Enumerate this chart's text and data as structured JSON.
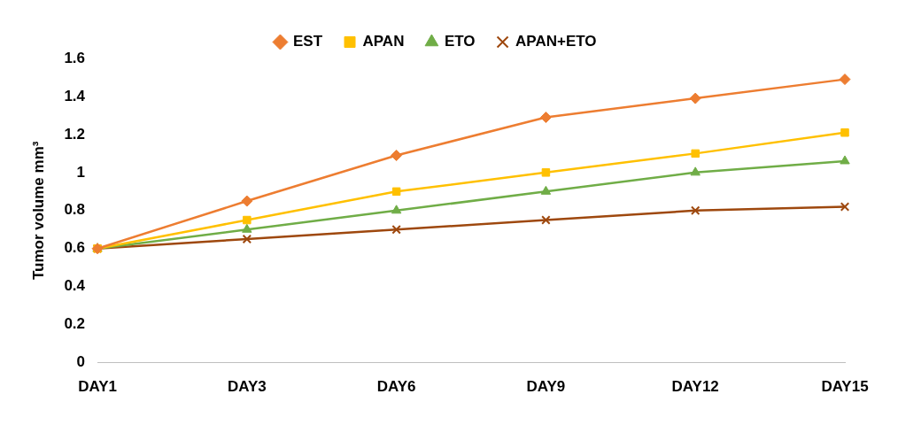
{
  "chart_data": {
    "type": "line",
    "ylabel": "Tumor volume mm³",
    "categories": [
      "DAY1",
      "DAY3",
      "DAY6",
      "DAY9",
      "DAY12",
      "DAY15"
    ],
    "series": [
      {
        "name": "EST",
        "color": "#ed7d31",
        "marker": "diamond",
        "values": [
          0.6,
          0.85,
          1.09,
          1.29,
          1.39,
          1.49
        ]
      },
      {
        "name": "APAN",
        "color": "#ffc000",
        "marker": "square",
        "values": [
          0.6,
          0.75,
          0.9,
          1.0,
          1.1,
          1.21
        ]
      },
      {
        "name": "ETO",
        "color": "#70ad47",
        "marker": "triangle",
        "values": [
          0.6,
          0.7,
          0.8,
          0.9,
          1.0,
          1.06
        ]
      },
      {
        "name": "APAN+ETO",
        "color": "#9e480e",
        "marker": "cross",
        "values": [
          0.6,
          0.65,
          0.7,
          0.75,
          0.8,
          0.82
        ]
      }
    ],
    "ylim": [
      0,
      1.6
    ],
    "yticks": [
      0,
      0.2,
      0.4,
      0.6,
      0.8,
      1,
      1.2,
      1.4,
      1.6
    ],
    "grid": false,
    "legend": "top",
    "line_style": "solid"
  }
}
